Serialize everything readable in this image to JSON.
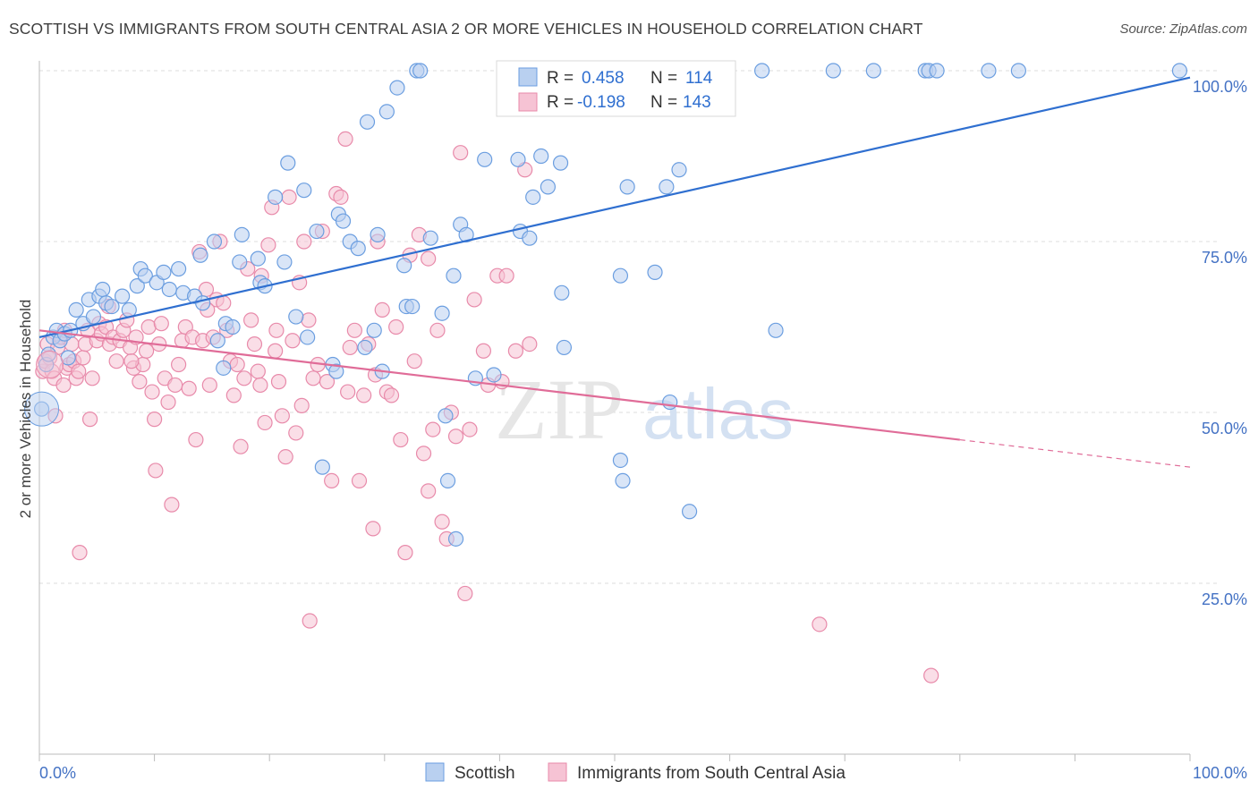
{
  "header": {
    "title": "SCOTTISH VS IMMIGRANTS FROM SOUTH CENTRAL ASIA 2 OR MORE VEHICLES IN HOUSEHOLD CORRELATION CHART",
    "source": "Source: ZipAtlas.com"
  },
  "colors": {
    "scottish": "#6b9ee0",
    "scottish_fill": "#b9d0f0",
    "scottish_line": "#2f6fd0",
    "immigrants": "#e88aaa",
    "immigrants_fill": "#f6c3d4",
    "immigrants_line": "#e06c98",
    "tick_text": "#4472c4",
    "grid": "#dddddd"
  },
  "legend": {
    "rows": [
      {
        "r_label": "R =",
        "r_value": "0.458",
        "n_label": "N =",
        "n_value": "114"
      },
      {
        "r_label": "R =",
        "r_value": "-0.198",
        "n_label": "N =",
        "n_value": "143"
      }
    ]
  },
  "watermark": {
    "zip": "ZIP",
    "atlas": "atlas"
  },
  "chart_data": {
    "type": "scatter",
    "title": "SCOTTISH VS IMMIGRANTS FROM SOUTH CENTRAL ASIA 2 OR MORE VEHICLES IN HOUSEHOLD CORRELATION CHART",
    "xlabel": "",
    "ylabel": "2 or more Vehicles in Household",
    "xlim": [
      0,
      100
    ],
    "ylim": [
      0,
      100
    ],
    "x_tick_labels": [
      "0.0%",
      "100.0%"
    ],
    "y_tick_labels": [
      "100.0%",
      "75.0%",
      "50.0%",
      "25.0%"
    ],
    "y_ticks": [
      100,
      75,
      50,
      25
    ],
    "grid": true,
    "legend_position": "bottom",
    "series": [
      {
        "name": "Scottish",
        "regression": {
          "x": [
            0,
            100
          ],
          "y": [
            61,
            99
          ]
        },
        "points": [
          [
            0.2,
            50.5
          ],
          [
            0.6,
            57
          ],
          [
            0.8,
            58.5
          ],
          [
            1.2,
            61
          ],
          [
            1.5,
            62
          ],
          [
            1.8,
            60.5
          ],
          [
            2.2,
            61.5
          ],
          [
            2.5,
            58
          ],
          [
            2.7,
            62
          ],
          [
            3.2,
            65
          ],
          [
            3.8,
            63
          ],
          [
            4.3,
            66.5
          ],
          [
            4.7,
            64
          ],
          [
            5.2,
            67
          ],
          [
            5.5,
            68
          ],
          [
            5.8,
            66
          ],
          [
            6.3,
            65.5
          ],
          [
            7.2,
            67
          ],
          [
            7.8,
            65
          ],
          [
            8.5,
            68.5
          ],
          [
            8.8,
            71
          ],
          [
            9.2,
            70
          ],
          [
            10.2,
            69
          ],
          [
            10.8,
            70.5
          ],
          [
            11.3,
            68
          ],
          [
            12.1,
            71
          ],
          [
            12.5,
            67.5
          ],
          [
            13.5,
            67
          ],
          [
            14,
            73
          ],
          [
            14.2,
            66
          ],
          [
            15.2,
            75
          ],
          [
            15.5,
            60.5
          ],
          [
            16,
            56.5
          ],
          [
            16.2,
            63
          ],
          [
            16.8,
            62.5
          ],
          [
            17.4,
            72
          ],
          [
            17.6,
            76
          ],
          [
            19,
            72.5
          ],
          [
            19.2,
            69
          ],
          [
            19.6,
            68.5
          ],
          [
            20.5,
            81.5
          ],
          [
            21.3,
            72
          ],
          [
            21.6,
            86.5
          ],
          [
            22.3,
            64
          ],
          [
            23,
            82.5
          ],
          [
            23.3,
            61
          ],
          [
            24.1,
            76.5
          ],
          [
            24.6,
            42
          ],
          [
            25.5,
            57
          ],
          [
            25.8,
            56
          ],
          [
            26,
            79
          ],
          [
            26.4,
            78
          ],
          [
            27,
            75
          ],
          [
            27.7,
            74
          ],
          [
            28.3,
            59.5
          ],
          [
            28.5,
            92.5
          ],
          [
            29.1,
            62
          ],
          [
            29.4,
            76
          ],
          [
            29.8,
            56
          ],
          [
            30.2,
            94
          ],
          [
            31.1,
            97.5
          ],
          [
            31.7,
            71.5
          ],
          [
            31.9,
            65.5
          ],
          [
            32.4,
            65.5
          ],
          [
            32.8,
            100
          ],
          [
            33.1,
            100
          ],
          [
            34,
            75.5
          ],
          [
            35,
            64.5
          ],
          [
            35.3,
            49.5
          ],
          [
            35.5,
            40
          ],
          [
            36,
            70
          ],
          [
            36.2,
            31.5
          ],
          [
            36.6,
            77.5
          ],
          [
            37.1,
            76
          ],
          [
            37.9,
            55
          ],
          [
            38.7,
            87
          ],
          [
            39.5,
            55.5
          ],
          [
            41.6,
            87
          ],
          [
            41.8,
            76.5
          ],
          [
            42.6,
            75.5
          ],
          [
            42.9,
            81.5
          ],
          [
            43.6,
            87.5
          ],
          [
            44.2,
            83
          ],
          [
            45.3,
            86.5
          ],
          [
            45.4,
            67.5
          ],
          [
            45.6,
            59.5
          ],
          [
            46.2,
            95.5
          ],
          [
            48.2,
            100
          ],
          [
            48.5,
            100
          ],
          [
            48.9,
            100
          ],
          [
            50.5,
            70
          ],
          [
            50.5,
            43
          ],
          [
            50.7,
            40
          ],
          [
            51.1,
            83
          ],
          [
            52.5,
            100
          ],
          [
            52.9,
            100
          ],
          [
            53.5,
            70.5
          ],
          [
            54.5,
            83
          ],
          [
            54.8,
            51.5
          ],
          [
            55.2,
            100
          ],
          [
            55.6,
            85.5
          ],
          [
            56.5,
            35.5
          ],
          [
            57,
            100
          ],
          [
            59,
            100
          ],
          [
            62.8,
            100
          ],
          [
            64,
            62
          ],
          [
            69,
            100
          ],
          [
            72.5,
            100
          ],
          [
            77,
            100
          ],
          [
            77.3,
            100
          ],
          [
            78,
            100
          ],
          [
            82.5,
            100
          ],
          [
            85.1,
            100
          ],
          [
            99.1,
            100
          ]
        ]
      },
      {
        "name": "Immigrants from South Central Asia",
        "regression": {
          "x": [
            0,
            80
          ],
          "y": [
            62,
            46
          ]
        },
        "regression_dashed": {
          "x": [
            80,
            100
          ],
          "y": [
            46,
            42
          ]
        },
        "points": [
          [
            0.3,
            56
          ],
          [
            0.5,
            57.5
          ],
          [
            0.7,
            60
          ],
          [
            0.9,
            58
          ],
          [
            1.1,
            56
          ],
          [
            1.3,
            55
          ],
          [
            1.6,
            59.5
          ],
          [
            1.9,
            61
          ],
          [
            2.1,
            54
          ],
          [
            2.4,
            56.5
          ],
          [
            2.6,
            57
          ],
          [
            2.8,
            60
          ],
          [
            3,
            57.5
          ],
          [
            3.2,
            55
          ],
          [
            3.5,
            29.5
          ],
          [
            3.8,
            58
          ],
          [
            4,
            60
          ],
          [
            4.2,
            62
          ],
          [
            4.6,
            55
          ],
          [
            5,
            60.5
          ],
          [
            5.2,
            63
          ],
          [
            5.4,
            61.5
          ],
          [
            5.8,
            62.5
          ],
          [
            6.1,
            60
          ],
          [
            6.4,
            61
          ],
          [
            6.7,
            57.5
          ],
          [
            7,
            60.5
          ],
          [
            7.3,
            62
          ],
          [
            7.6,
            63.5
          ],
          [
            7.9,
            59.5
          ],
          [
            8.2,
            56.5
          ],
          [
            8.4,
            61
          ],
          [
            8.7,
            54.5
          ],
          [
            9,
            57
          ],
          [
            9.3,
            59
          ],
          [
            9.5,
            62.5
          ],
          [
            9.8,
            53
          ],
          [
            10.1,
            41.5
          ],
          [
            10.4,
            60
          ],
          [
            10.6,
            63
          ],
          [
            10.9,
            55
          ],
          [
            11.2,
            51.5
          ],
          [
            11.5,
            36.5
          ],
          [
            11.8,
            54
          ],
          [
            12.1,
            57
          ],
          [
            12.4,
            60.5
          ],
          [
            12.7,
            62.5
          ],
          [
            13,
            53.5
          ],
          [
            13.3,
            61
          ],
          [
            13.6,
            46
          ],
          [
            13.9,
            73.5
          ],
          [
            14.2,
            60.5
          ],
          [
            14.5,
            68
          ],
          [
            14.8,
            54
          ],
          [
            15.1,
            61
          ],
          [
            15.4,
            66.5
          ],
          [
            15.7,
            75
          ],
          [
            16,
            66
          ],
          [
            16.3,
            62
          ],
          [
            16.6,
            57.5
          ],
          [
            16.9,
            52.5
          ],
          [
            17.2,
            57
          ],
          [
            17.5,
            45
          ],
          [
            17.8,
            55
          ],
          [
            18.1,
            71
          ],
          [
            18.4,
            63.5
          ],
          [
            18.7,
            60
          ],
          [
            19,
            56
          ],
          [
            19.3,
            70
          ],
          [
            19.6,
            48.5
          ],
          [
            19.9,
            74.5
          ],
          [
            20.2,
            80
          ],
          [
            20.5,
            59
          ],
          [
            20.8,
            54.5
          ],
          [
            21.1,
            49.5
          ],
          [
            21.4,
            43.5
          ],
          [
            21.7,
            81.5
          ],
          [
            22,
            60.5
          ],
          [
            22.3,
            47
          ],
          [
            22.6,
            69
          ],
          [
            23,
            75
          ],
          [
            23.4,
            63.5
          ],
          [
            23.8,
            55
          ],
          [
            24.2,
            57
          ],
          [
            24.6,
            76.5
          ],
          [
            25,
            54.5
          ],
          [
            25.4,
            40
          ],
          [
            25.8,
            82
          ],
          [
            26.2,
            81.5
          ],
          [
            26.6,
            90
          ],
          [
            27,
            59.5
          ],
          [
            27.4,
            62
          ],
          [
            27.8,
            40
          ],
          [
            28.2,
            52.5
          ],
          [
            28.6,
            60
          ],
          [
            29,
            33
          ],
          [
            29.4,
            75
          ],
          [
            29.8,
            65
          ],
          [
            30.2,
            53
          ],
          [
            30.6,
            52.5
          ],
          [
            31,
            62.5
          ],
          [
            31.4,
            46
          ],
          [
            31.8,
            29.5
          ],
          [
            32.2,
            73
          ],
          [
            32.6,
            57.5
          ],
          [
            33,
            76
          ],
          [
            33.4,
            44
          ],
          [
            33.8,
            72.5
          ],
          [
            34.2,
            47.5
          ],
          [
            34.6,
            62
          ],
          [
            35,
            34
          ],
          [
            35.4,
            31.5
          ],
          [
            35.8,
            50
          ],
          [
            36.2,
            46.5
          ],
          [
            36.6,
            88
          ],
          [
            37,
            23.5
          ],
          [
            37.4,
            47.5
          ],
          [
            37.8,
            66.5
          ],
          [
            38.6,
            59
          ],
          [
            39,
            54
          ],
          [
            39.8,
            70
          ],
          [
            40.6,
            70
          ],
          [
            41.4,
            59
          ],
          [
            42.2,
            85.5
          ],
          [
            20.6,
            62
          ],
          [
            19.2,
            54
          ],
          [
            14.6,
            65
          ],
          [
            10,
            49
          ],
          [
            8,
            57.5
          ],
          [
            6,
            65.5
          ],
          [
            4.4,
            49
          ],
          [
            3.4,
            56
          ],
          [
            2.2,
            62
          ],
          [
            1.4,
            49.5
          ],
          [
            22.8,
            51
          ],
          [
            26.8,
            53
          ],
          [
            29.2,
            55.5
          ],
          [
            33.8,
            38.5
          ],
          [
            40.2,
            54.5
          ],
          [
            42.6,
            60
          ],
          [
            67.8,
            19
          ],
          [
            77.5,
            11.5
          ],
          [
            23.5,
            19.5
          ]
        ]
      }
    ]
  }
}
